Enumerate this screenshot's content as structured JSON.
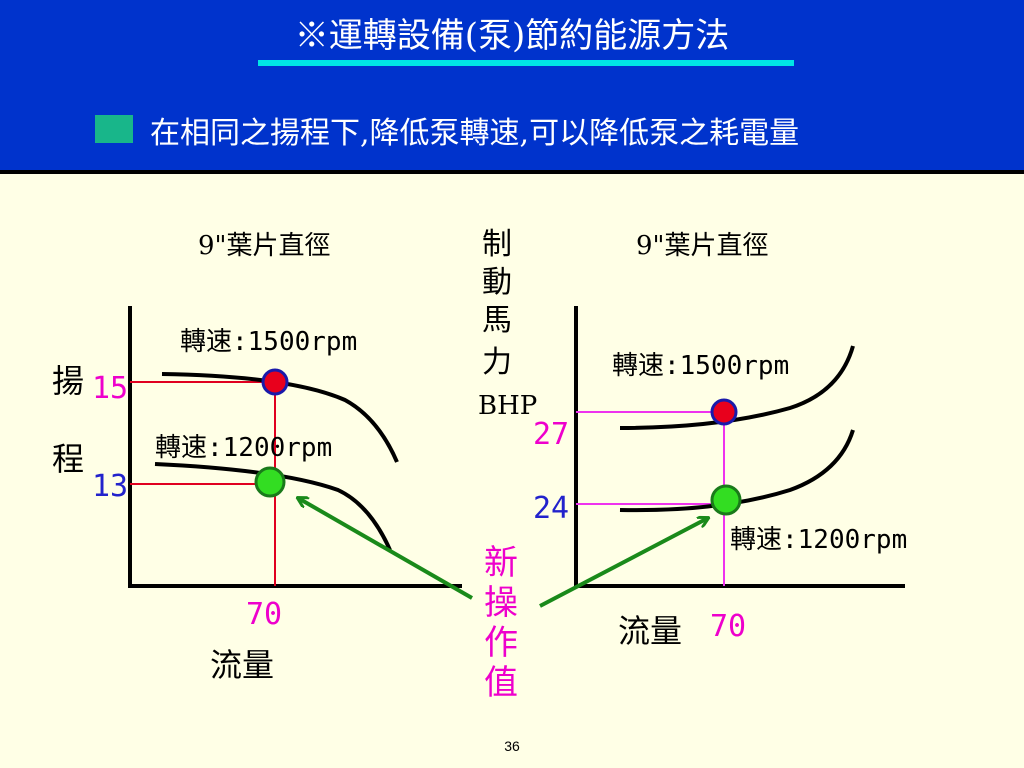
{
  "header": {
    "title": "※運轉設備(泵)節約能源方法",
    "subtitle": "在相同之揚程下,降低泵轉速,可以降低泵之耗電量"
  },
  "left_chart": {
    "diameter_label": "9\"葉片直徑",
    "y_axis_char_1": "揚",
    "y_axis_char_2": "程",
    "x_axis_label": "流量",
    "curve_high_label": "轉速:1500rpm",
    "curve_low_label": "轉速:1200rpm",
    "y_value_high": "15",
    "y_value_low": "13",
    "x_value": "70"
  },
  "right_chart": {
    "diameter_label": "9\"葉片直徑",
    "y_axis_lines": [
      "制",
      "動",
      "馬",
      "力",
      "BHP"
    ],
    "x_axis_label": "流量",
    "curve_high_label": "轉速:1500rpm",
    "curve_low_label": "轉速:1200rpm",
    "y_value_high": "27",
    "y_value_low": "24",
    "x_value": "70"
  },
  "annotation": {
    "new_operating_point_chars": [
      "新",
      "操",
      "作",
      "值"
    ]
  },
  "colors": {
    "header_bg": "#0033cc",
    "underline": "#00e6e6",
    "bullet": "#18b68a",
    "red_point": "#e8001c",
    "green_point": "#33dd22",
    "left_guides": "#e00020",
    "right_guides": "#ee33ee",
    "magenta_text": "#ee00cc",
    "blue_text": "#2222cc",
    "arrow": "#1a8a1a"
  },
  "page_number": "36"
}
